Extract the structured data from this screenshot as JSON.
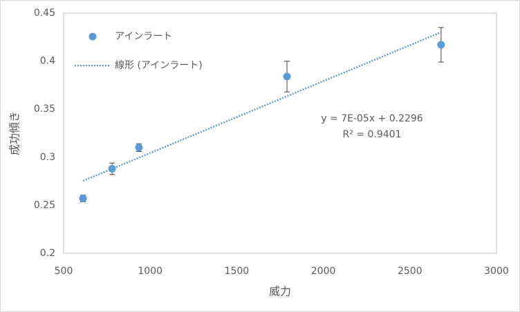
{
  "chart_data": {
    "type": "scatter",
    "x_label": "威力",
    "y_label": "成功傾き",
    "series": [
      {
        "name": "アインラート",
        "color": "#5b9bd5",
        "x": [
          612,
          780,
          935,
          1790,
          2680
        ],
        "values": [
          0.257,
          0.288,
          0.31,
          0.384,
          0.417
        ],
        "errors": [
          0.0035,
          0.006,
          0.004,
          0.016,
          0.018
        ]
      }
    ],
    "trendline": {
      "name": "線形 (アインラート)",
      "color": "#5b9bd5",
      "slope": 7.48e-05,
      "intercept": 0.2296,
      "equation": "y = 7E-05x + 0.2296",
      "r2_label": "R² = 0.9401"
    },
    "xlim": [
      500,
      3000
    ],
    "xticks": [
      500,
      1000,
      1500,
      2000,
      2500,
      3000
    ],
    "ylim": [
      0.2,
      0.45
    ],
    "yticks": [
      {
        "value": 0.2,
        "label": "0.2"
      },
      {
        "value": 0.25,
        "label": "0.25"
      },
      {
        "value": 0.3,
        "label": "0.3"
      },
      {
        "value": 0.35,
        "label": "0.35"
      },
      {
        "value": 0.4,
        "label": "0.4"
      },
      {
        "value": 0.45,
        "label": "0.45"
      }
    ],
    "grid": false,
    "legend": "top-left"
  }
}
